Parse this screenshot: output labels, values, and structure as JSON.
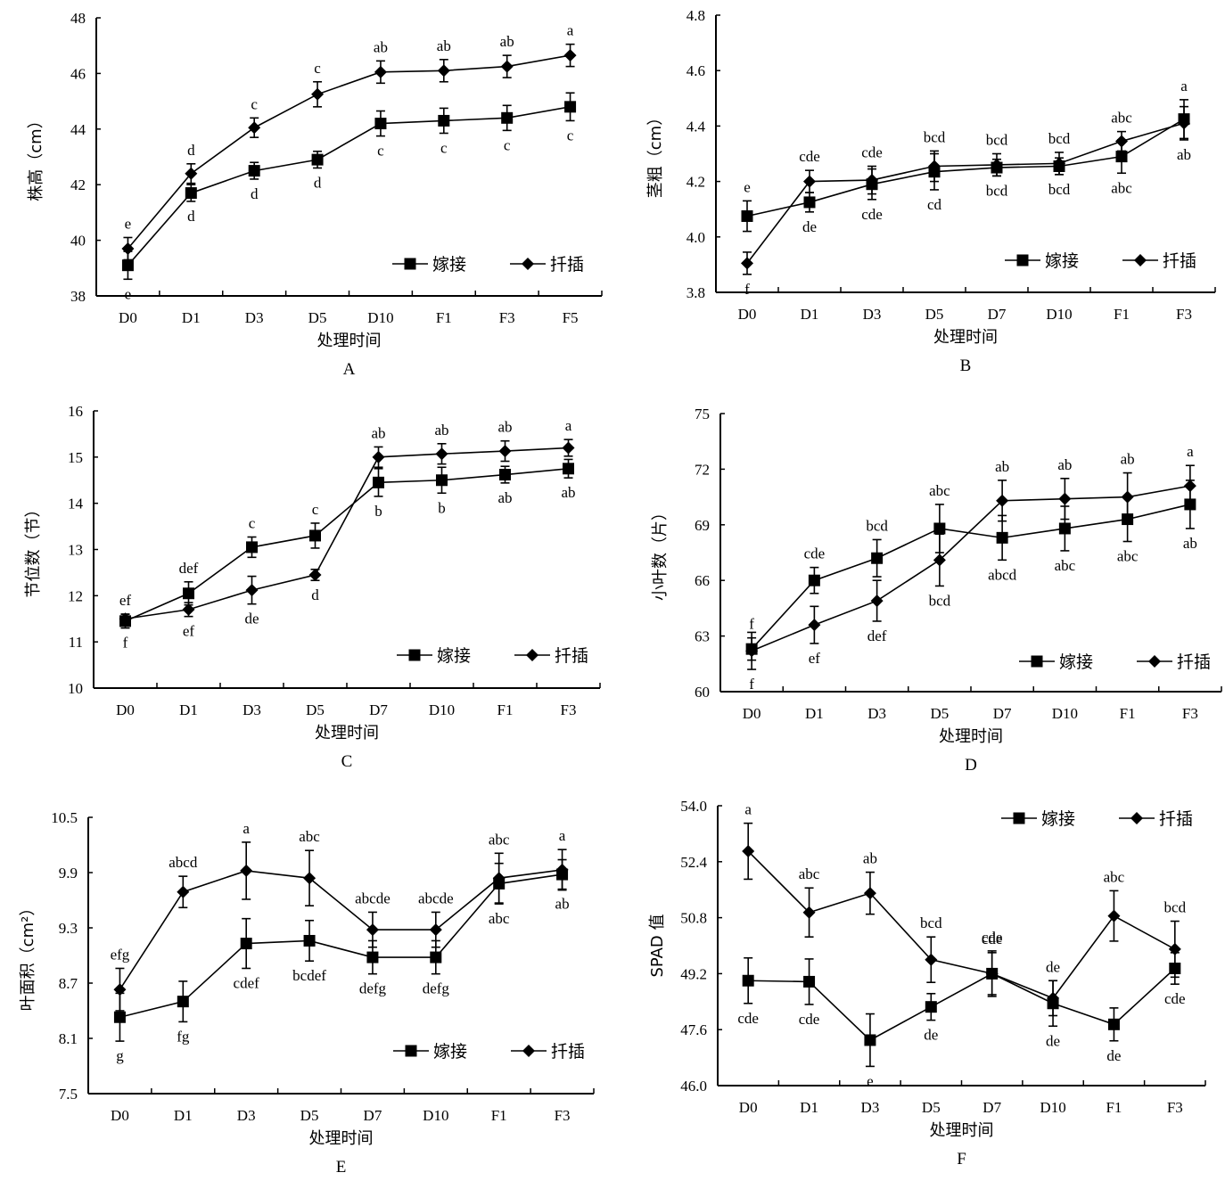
{
  "figure": {
    "legend": {
      "series1": "嫁接",
      "series2": "扦插"
    },
    "xlabel": "处理时间"
  },
  "chart_data": [
    {
      "panel": "A",
      "type": "line",
      "title": "",
      "xlabel": "处理时间",
      "ylabel": "株高（cm）",
      "ylim": [
        38,
        48
      ],
      "yticks": [
        38,
        40,
        42,
        44,
        46,
        48
      ],
      "ytick_labels": [
        "38",
        "40",
        "42",
        "44",
        "46",
        "48"
      ],
      "categories": [
        "D0",
        "D1",
        "D3",
        "D5",
        "D10",
        "F1",
        "F3",
        "F5"
      ],
      "legend_position": "bottom-right",
      "grid": false,
      "series": [
        {
          "name": "嫁接",
          "marker": "square",
          "values": [
            39.1,
            41.7,
            42.5,
            42.9,
            44.2,
            44.3,
            44.4,
            44.8
          ],
          "errors": [
            0.5,
            0.3,
            0.3,
            0.3,
            0.45,
            0.45,
            0.45,
            0.5
          ],
          "labels": [
            "e",
            "d",
            "d",
            "d",
            "c",
            "c",
            "c",
            "c"
          ],
          "label_side": "below"
        },
        {
          "name": "扦插",
          "marker": "diamond",
          "values": [
            39.7,
            42.4,
            44.05,
            45.25,
            46.05,
            46.1,
            46.25,
            46.65
          ],
          "errors": [
            0.4,
            0.35,
            0.35,
            0.45,
            0.4,
            0.4,
            0.4,
            0.4
          ],
          "labels": [
            "e",
            "d",
            "c",
            "c",
            "ab",
            "ab",
            "ab",
            "a"
          ],
          "label_side": "above"
        }
      ]
    },
    {
      "panel": "B",
      "type": "line",
      "title": "",
      "xlabel": "处理时间",
      "ylabel": "茎粗（cm）",
      "ylim": [
        3.8,
        4.8
      ],
      "yticks": [
        3.8,
        4.0,
        4.2,
        4.4,
        4.6,
        4.8
      ],
      "ytick_labels": [
        "3.8",
        "4.0",
        "4.2",
        "4.4",
        "4.6",
        "4.8"
      ],
      "categories": [
        "D0",
        "D1",
        "D3",
        "D5",
        "D7",
        "D10",
        "F1",
        "F3"
      ],
      "legend_position": "bottom-right",
      "grid": false,
      "series": [
        {
          "name": "嫁接",
          "marker": "square",
          "values": [
            4.075,
            4.125,
            4.19,
            4.235,
            4.25,
            4.255,
            4.29,
            4.425
          ],
          "errors": [
            0.055,
            0.035,
            0.055,
            0.065,
            0.03,
            0.03,
            0.06,
            0.07
          ],
          "labels": [
            "e",
            "de",
            "cde",
            "cd",
            "bcd",
            "bcd",
            "abc",
            "a"
          ],
          "label_side": "mixed"
        },
        {
          "name": "扦插",
          "marker": "diamond",
          "values": [
            3.905,
            4.2,
            4.205,
            4.255,
            4.26,
            4.265,
            4.345,
            4.41
          ],
          "errors": [
            0.04,
            0.04,
            0.05,
            0.055,
            0.04,
            0.04,
            0.035,
            0.06
          ],
          "labels": [
            "f",
            "cde",
            "cde",
            "bcd",
            "bcd",
            "bcd",
            "abc",
            "ab"
          ],
          "label_side": "mixed"
        }
      ]
    },
    {
      "panel": "C",
      "type": "line",
      "title": "",
      "xlabel": "处理时间",
      "ylabel": "节位数（节）",
      "ylim": [
        10,
        16
      ],
      "yticks": [
        10,
        11,
        12,
        13,
        14,
        15,
        16
      ],
      "ytick_labels": [
        "10",
        "11",
        "12",
        "13",
        "14",
        "15",
        "16"
      ],
      "categories": [
        "D0",
        "D1",
        "D3",
        "D5",
        "D7",
        "D10",
        "F1",
        "F3"
      ],
      "legend_position": "bottom-right",
      "grid": false,
      "series": [
        {
          "name": "嫁接",
          "marker": "square",
          "values": [
            11.45,
            12.05,
            13.05,
            13.3,
            14.45,
            14.5,
            14.62,
            14.75
          ],
          "errors": [
            0.15,
            0.25,
            0.22,
            0.27,
            0.3,
            0.28,
            0.18,
            0.2
          ],
          "labels": [
            "f",
            "def",
            "c",
            "c",
            "b",
            "b",
            "ab",
            "ab"
          ],
          "label_side": "mixed"
        },
        {
          "name": "扦插",
          "marker": "diamond",
          "values": [
            11.5,
            11.7,
            12.12,
            12.45,
            15.0,
            15.07,
            15.13,
            15.2
          ],
          "errors": [
            0.1,
            0.15,
            0.3,
            0.12,
            0.22,
            0.22,
            0.22,
            0.18
          ],
          "labels": [
            "ef",
            "ef",
            "de",
            "d",
            "ab",
            "ab",
            "ab",
            "a"
          ],
          "label_side": "mixed"
        }
      ]
    },
    {
      "panel": "D",
      "type": "line",
      "title": "",
      "xlabel": "处理时间",
      "ylabel": "小叶数（片）",
      "ylim": [
        60,
        75
      ],
      "yticks": [
        60,
        63,
        66,
        69,
        72,
        75
      ],
      "ytick_labels": [
        "60",
        "63",
        "66",
        "69",
        "72",
        "75"
      ],
      "categories": [
        "D0",
        "D1",
        "D3",
        "D5",
        "D7",
        "D10",
        "F1",
        "F3"
      ],
      "legend_position": "bottom-right",
      "grid": false,
      "series": [
        {
          "name": "嫁接",
          "marker": "square",
          "values": [
            62.3,
            66.0,
            67.2,
            68.8,
            68.3,
            68.8,
            69.3,
            70.1
          ],
          "errors": [
            0.6,
            0.7,
            1.0,
            1.3,
            1.2,
            1.2,
            1.2,
            1.3
          ],
          "labels": [
            "f",
            "cde",
            "bcd",
            "abc",
            "abcd",
            "abc",
            "abc",
            "ab"
          ],
          "label_side": "mixed"
        },
        {
          "name": "扦插",
          "marker": "diamond",
          "values": [
            62.2,
            63.6,
            64.9,
            67.1,
            70.3,
            70.4,
            70.5,
            71.1
          ],
          "errors": [
            1.0,
            1.0,
            1.1,
            1.4,
            1.1,
            1.1,
            1.3,
            1.1
          ],
          "labels": [
            "f",
            "ef",
            "def",
            "bcd",
            "ab",
            "ab",
            "ab",
            "a"
          ],
          "label_side": "mixed"
        }
      ]
    },
    {
      "panel": "E",
      "type": "line",
      "title": "",
      "xlabel": "处理时间",
      "ylabel": "叶面积（cm²）",
      "ylim": [
        7.5,
        10.5
      ],
      "yticks": [
        7.5,
        8.1,
        8.7,
        9.3,
        9.9,
        10.5
      ],
      "ytick_labels": [
        "7.5",
        "8.1",
        "8.7",
        "9.3",
        "9.9",
        "10.5"
      ],
      "categories": [
        "D0",
        "D1",
        "D3",
        "D5",
        "D7",
        "D10",
        "F1",
        "F3"
      ],
      "legend_position": "bottom-right",
      "grid": false,
      "series": [
        {
          "name": "嫁接",
          "marker": "square",
          "values": [
            8.33,
            8.5,
            9.13,
            9.16,
            8.98,
            8.98,
            9.78,
            9.88
          ],
          "errors": [
            0.26,
            0.22,
            0.27,
            0.22,
            0.18,
            0.18,
            0.22,
            0.16
          ],
          "labels": [
            "g",
            "fg",
            "cdef",
            "bcdef",
            "defg",
            "defg",
            "abc",
            "ab"
          ],
          "label_side": "below"
        },
        {
          "name": "扦插",
          "marker": "diamond",
          "values": [
            8.63,
            9.69,
            9.92,
            9.84,
            9.28,
            9.28,
            9.84,
            9.93
          ],
          "errors": [
            0.23,
            0.17,
            0.31,
            0.3,
            0.19,
            0.19,
            0.27,
            0.22
          ],
          "labels": [
            "efg",
            "abcd",
            "a",
            "abc",
            "abcde",
            "abcde",
            "abc",
            "a"
          ],
          "label_side": "above"
        }
      ]
    },
    {
      "panel": "F",
      "type": "line",
      "title": "",
      "xlabel": "处理时间",
      "ylabel": "SPAD 值",
      "ylim": [
        46.0,
        54.0
      ],
      "yticks": [
        46.0,
        47.6,
        49.2,
        50.8,
        52.4,
        54.0
      ],
      "ytick_labels": [
        "46.0",
        "47.6",
        "49.2",
        "50.8",
        "52.4",
        "54.0"
      ],
      "categories": [
        "D0",
        "D1",
        "D3",
        "D5",
        "D7",
        "D10",
        "F1",
        "F3"
      ],
      "legend_position": "top-right",
      "grid": false,
      "series": [
        {
          "name": "嫁接",
          "marker": "square",
          "values": [
            49.0,
            48.97,
            47.3,
            48.25,
            49.2,
            48.35,
            47.75,
            49.35
          ],
          "errors": [
            0.65,
            0.65,
            0.75,
            0.38,
            0.6,
            0.65,
            0.47,
            0.45
          ],
          "labels": [
            "cde",
            "cde",
            "e",
            "de",
            "cde",
            "de",
            "de",
            "cde"
          ],
          "label_side": "below"
        },
        {
          "name": "扦插",
          "marker": "diamond",
          "values": [
            52.7,
            50.95,
            51.5,
            49.6,
            49.2,
            48.5,
            50.85,
            49.9
          ],
          "errors": [
            0.8,
            0.7,
            0.6,
            0.65,
            0.65,
            0.5,
            0.72,
            0.8
          ],
          "labels": [
            "a",
            "abc",
            "ab",
            "bcd",
            "cde",
            "de",
            "abc",
            "bcd"
          ],
          "label_side": "above"
        }
      ]
    }
  ]
}
